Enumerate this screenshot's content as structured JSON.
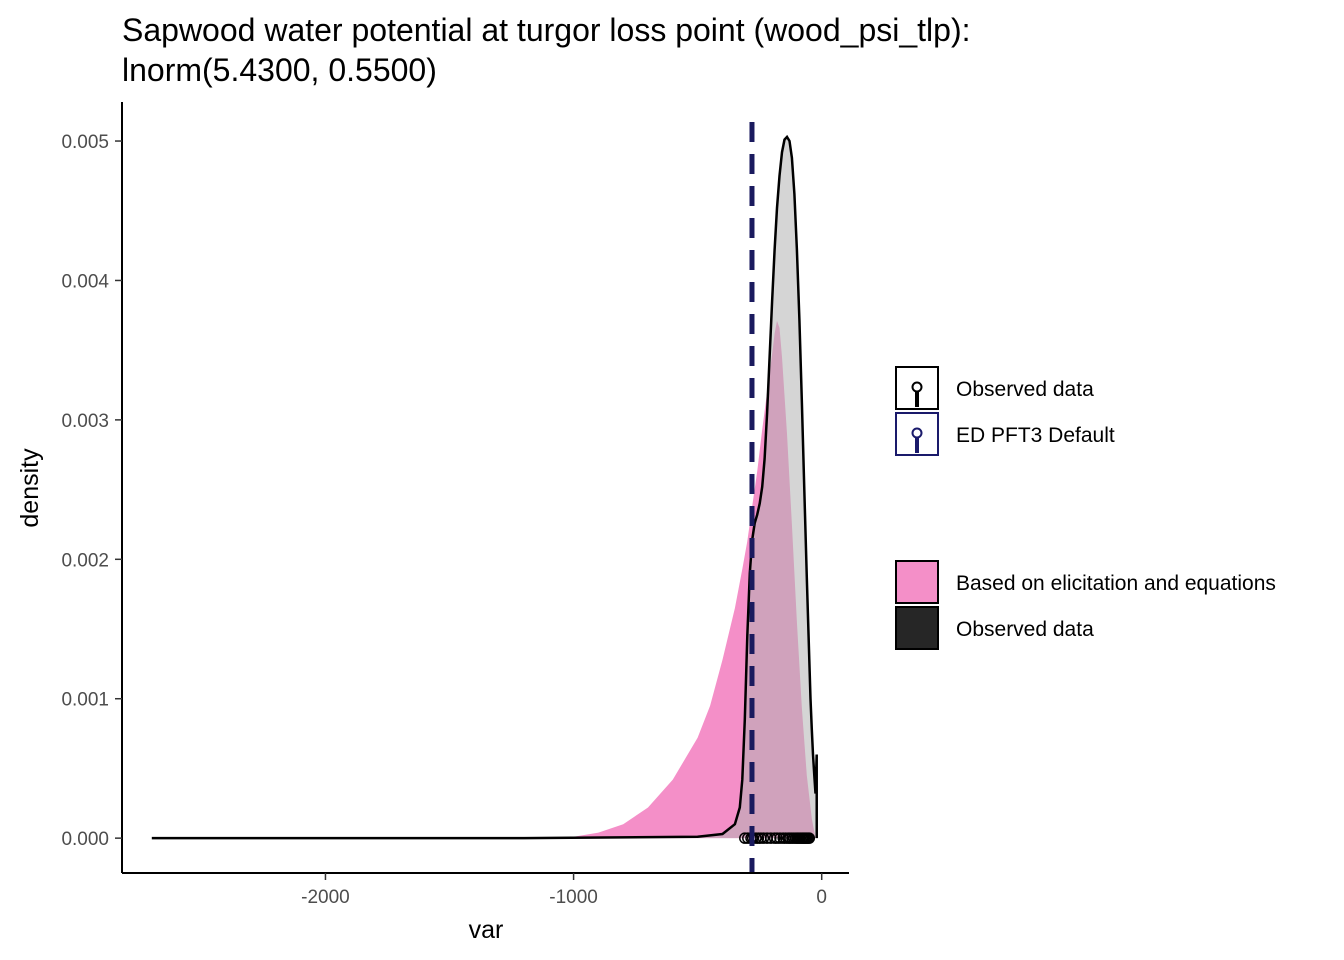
{
  "chart_data": {
    "type": "area",
    "title": "Sapwood water potential at turgor loss point (wood_psi_tlp):",
    "subtitle": "lnorm(5.4300, 0.5500)",
    "xlabel": "var",
    "ylabel": "density",
    "xlim": [
      -2820,
      110
    ],
    "ylim": [
      -0.00025,
      0.00528
    ],
    "x_ticks": [
      -2000,
      -1000,
      0
    ],
    "x_tick_labels": [
      "-2000",
      "-1000",
      "0"
    ],
    "y_ticks": [
      0,
      0.001,
      0.002,
      0.003,
      0.004,
      0.005
    ],
    "y_tick_labels": [
      "0.000",
      "0.001",
      "0.002",
      "0.003",
      "0.004",
      "0.005"
    ],
    "grid": false,
    "series": [
      {
        "name": "Based on elicitation and equations",
        "kind": "density-area",
        "color": "#f48fc8",
        "x": [
          -1100,
          -1000,
          -900,
          -800,
          -700,
          -600,
          -500,
          -450,
          -400,
          -350,
          -320,
          -300,
          -280,
          -260,
          -240,
          -220,
          -200,
          -190,
          -180,
          -170,
          -160,
          -140,
          -120,
          -100,
          -80,
          -60,
          -40,
          -25
        ],
        "y": [
          0,
          1e-05,
          4e-05,
          0.0001,
          0.00022,
          0.00042,
          0.00072,
          0.00095,
          0.00128,
          0.00165,
          0.00193,
          0.00213,
          0.00238,
          0.00263,
          0.00293,
          0.0032,
          0.00347,
          0.00362,
          0.00371,
          0.00366,
          0.00345,
          0.0029,
          0.00225,
          0.00155,
          0.00093,
          0.00045,
          0.00014,
          0
        ]
      },
      {
        "name": "Observed data",
        "kind": "density-area",
        "color": "#b3b3b3",
        "x": [
          -2700,
          -1200,
          -500,
          -400,
          -350,
          -330,
          -320,
          -310,
          -300,
          -290,
          -280,
          -270,
          -260,
          -250,
          -240,
          -230,
          -220,
          -210,
          -200,
          -190,
          -180,
          -170,
          -160,
          -150,
          -140,
          -130,
          -120,
          -110,
          -100,
          -90,
          -80,
          -70,
          -60,
          -50,
          -45,
          -40,
          -35,
          -30,
          -25,
          -20
        ],
        "y": [
          0,
          0,
          1e-05,
          3e-05,
          0.0001,
          0.00022,
          0.00042,
          0.00085,
          0.00145,
          0.0019,
          0.00214,
          0.00226,
          0.00232,
          0.0024,
          0.00252,
          0.00272,
          0.00305,
          0.00345,
          0.00385,
          0.00422,
          0.00452,
          0.00475,
          0.00492,
          0.00501,
          0.00503,
          0.005,
          0.00488,
          0.00462,
          0.00422,
          0.00372,
          0.00312,
          0.0025,
          0.00187,
          0.00128,
          0.001,
          0.00078,
          0.0006,
          0.00045,
          0.00032,
          0.0006
        ]
      }
    ],
    "observed_points": [
      -310,
      -298,
      -285,
      -278,
      -265,
      -255,
      -245,
      -235,
      -220,
      -205,
      -190,
      -180,
      -168,
      -155,
      -145,
      -135,
      -128,
      -120,
      -112,
      -104,
      -98,
      -92,
      -86,
      -80,
      -75,
      -70,
      -65,
      -60,
      -55,
      -50
    ],
    "vline": {
      "name": "ED PFT3 Default",
      "x": -281,
      "color": "#1a1a5e",
      "style": "dashed"
    },
    "legend_placement": "right",
    "legend_points": [
      {
        "label": "Observed data",
        "color": "#000000"
      },
      {
        "label": "ED PFT3 Default",
        "color": "#1a1a6b"
      }
    ],
    "legend_fills": [
      {
        "label": "Based on elicitation and equations",
        "color": "#f48fc8"
      },
      {
        "label": "Observed data",
        "color": "#262626"
      }
    ]
  }
}
